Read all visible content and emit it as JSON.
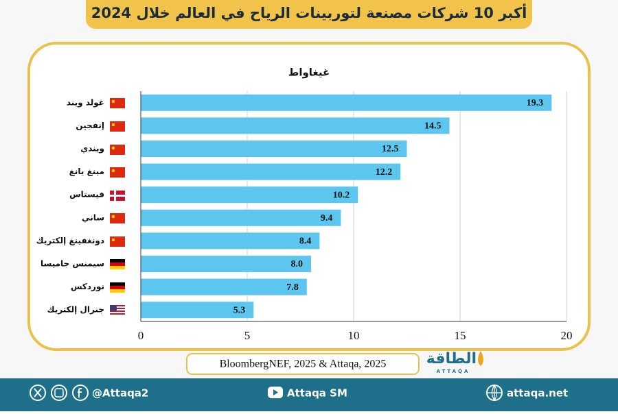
{
  "chart_data": {
    "type": "bar",
    "orientation": "horizontal",
    "title": "أكبر 10 شركات مصنعة لتوربينات الرياح في العالم خلال 2024",
    "unit_label": "غيغاواط",
    "source": "BloombergNEF, 2025 & Attaqa, 2025",
    "categories": [
      "غولد ويند",
      "إنفجين",
      "ويندي",
      "مينغ يانغ",
      "فيستاس",
      "ساني",
      "دونغفينغ إلكتريك",
      "سيمنس جاميسا",
      "نوردكس",
      "جنرال إلكتريك"
    ],
    "values": [
      19.3,
      14.5,
      12.5,
      12.2,
      10.2,
      9.4,
      8.4,
      8.0,
      7.8,
      5.3
    ],
    "value_labels": [
      "19.3",
      "14.5",
      "12.5",
      "12.2",
      "10.2",
      "9.4",
      "8.4",
      "8.0",
      "7.8",
      "5.3"
    ],
    "color": "#5cc6ef",
    "xlim": [
      0,
      20
    ],
    "xticks": [
      0,
      5,
      10,
      15,
      20
    ],
    "grid": true
  },
  "logo": {
    "name": "الطاقة",
    "sub": "ATTAQA"
  },
  "footer": {
    "handle": "@Attaqa2",
    "youtube": "Attaqa SM",
    "website": "attaqa.net"
  }
}
